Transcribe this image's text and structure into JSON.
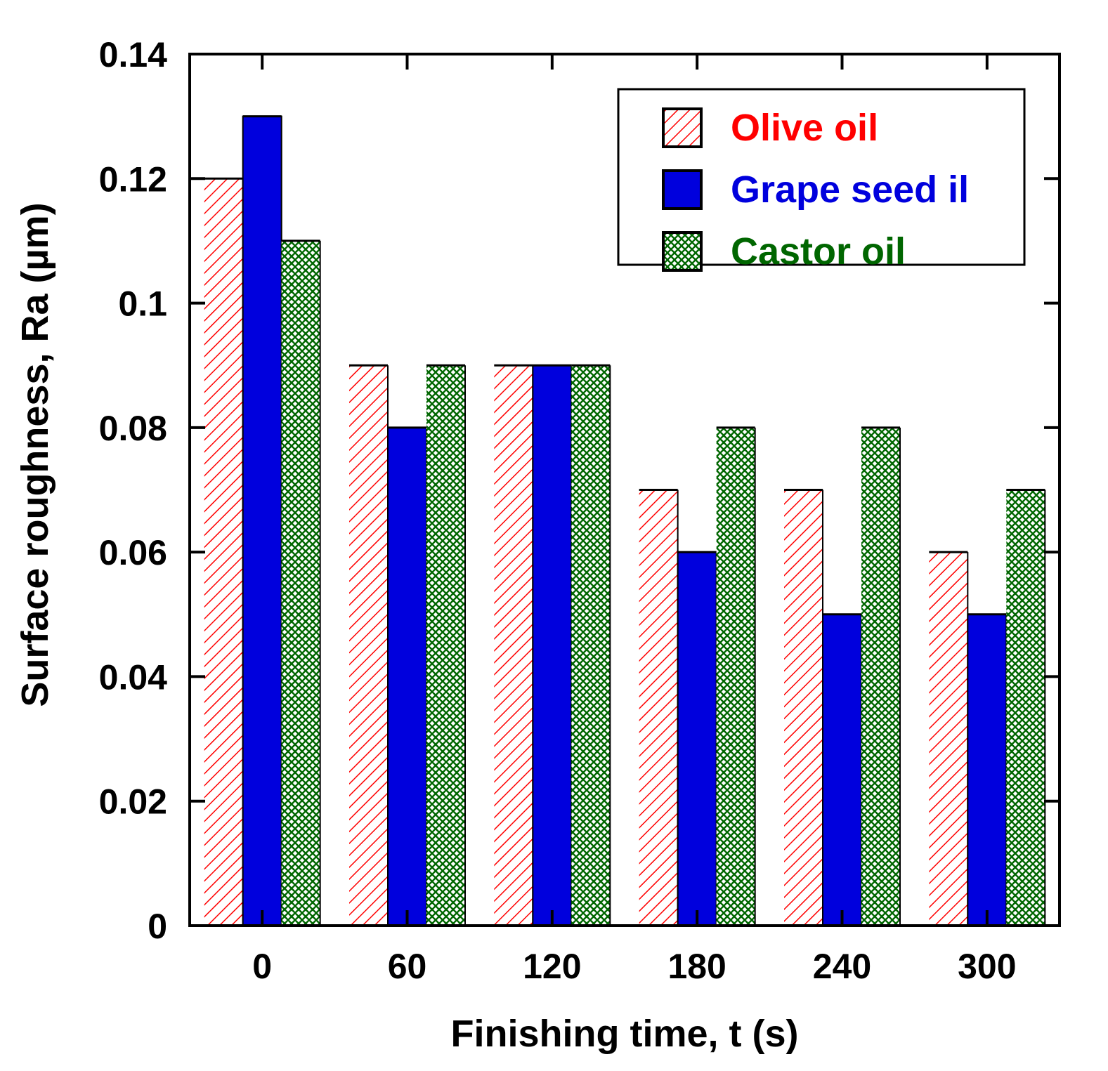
{
  "chart_data": {
    "type": "bar",
    "xlabel": "Finishing time, t (s)",
    "ylabel": "Surface roughness, Ra (µm)",
    "ylim": [
      0,
      0.14
    ],
    "yticks": [
      "0",
      "0.02",
      "0.04",
      "0.06",
      "0.08",
      "0.1",
      "0.12",
      "0.14"
    ],
    "yticks_values": [
      0,
      0.02,
      0.04,
      0.06,
      0.08,
      0.1,
      0.12,
      0.14
    ],
    "categories": [
      "0",
      "60",
      "120",
      "180",
      "240",
      "300"
    ],
    "series": [
      {
        "name": "Olive oil",
        "values": [
          0.12,
          0.09,
          0.09,
          0.07,
          0.07,
          0.06
        ],
        "color": "#ff0000",
        "pattern": "diagonal-hatch"
      },
      {
        "name": "Grape seed il",
        "values": [
          0.13,
          0.08,
          0.09,
          0.06,
          0.05,
          0.05
        ],
        "color": "#0000dd",
        "pattern": "solid"
      },
      {
        "name": "Castor oil",
        "values": [
          0.11,
          0.09,
          0.09,
          0.08,
          0.08,
          0.07
        ],
        "color": "#006600",
        "pattern": "crosshatch"
      }
    ],
    "legend_position": "top-right",
    "grid": false
  }
}
